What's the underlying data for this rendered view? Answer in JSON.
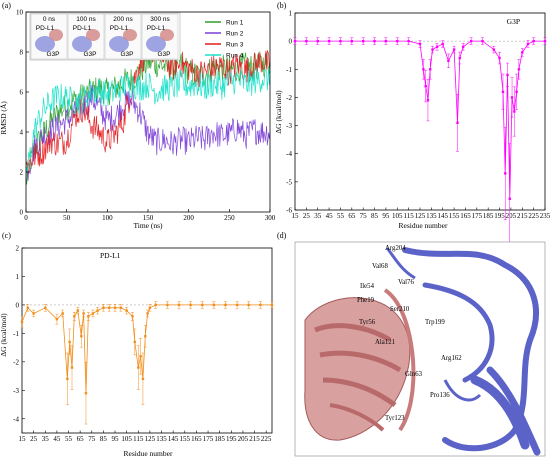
{
  "chart_data": [
    {
      "panel_label": "(a)",
      "type": "line",
      "xlabel": "Time (ns)",
      "ylabel": "RMSD (Å)",
      "xlim": [
        0,
        300
      ],
      "ylim": [
        0,
        10
      ],
      "xticks": [
        "0",
        "50",
        "100",
        "150",
        "200",
        "250",
        "300"
      ],
      "yticks": [
        "0",
        "2",
        "4",
        "6",
        "8",
        "10"
      ],
      "legend_position": "top-right",
      "inset": {
        "times": [
          "0 ns",
          "100 ns",
          "200 ns",
          "300 ns"
        ],
        "protein_labels": [
          "PD-L1",
          "G3P"
        ]
      },
      "series": [
        {
          "name": "Run 1",
          "color": "#2ca02c",
          "x": [
            0,
            10,
            20,
            30,
            40,
            50,
            60,
            70,
            80,
            90,
            100,
            110,
            120,
            130,
            140,
            150,
            160,
            170,
            180,
            190,
            200,
            210,
            220,
            230,
            240,
            250,
            260,
            270,
            280,
            290,
            300
          ],
          "values": [
            1.5,
            3.2,
            3.8,
            4.5,
            5.0,
            5.3,
            5.6,
            5.8,
            6.0,
            6.2,
            6.0,
            6.2,
            6.5,
            6.6,
            7.0,
            7.5,
            7.4,
            7.3,
            7.2,
            7.4,
            7.0,
            6.8,
            6.9,
            7.2,
            7.2,
            7.1,
            7.2,
            7.3,
            7.2,
            7.4,
            7.5
          ]
        },
        {
          "name": "Run 2",
          "color": "#7b3fd6",
          "x": [
            0,
            10,
            20,
            30,
            40,
            50,
            60,
            70,
            80,
            90,
            100,
            110,
            120,
            130,
            140,
            150,
            160,
            170,
            180,
            190,
            200,
            210,
            220,
            230,
            240,
            250,
            260,
            270,
            280,
            290,
            300
          ],
          "values": [
            1.8,
            3.2,
            3.8,
            4.0,
            4.3,
            4.6,
            4.9,
            5.2,
            5.8,
            5.2,
            4.6,
            4.8,
            5.4,
            5.6,
            5.0,
            3.9,
            3.5,
            3.6,
            3.4,
            3.6,
            3.5,
            3.7,
            3.6,
            4.0,
            3.8,
            3.9,
            4.2,
            3.8,
            4.1,
            4.0,
            4.0
          ]
        },
        {
          "name": "Run 3",
          "color": "#e31a1c",
          "x": [
            0,
            10,
            20,
            30,
            40,
            50,
            60,
            70,
            80,
            90,
            100,
            110,
            120,
            130,
            140,
            150,
            160,
            170,
            180,
            190,
            200,
            210,
            220,
            230,
            240,
            250,
            260,
            270,
            280,
            290,
            300
          ],
          "values": [
            2.2,
            2.8,
            3.0,
            3.6,
            3.4,
            3.6,
            4.8,
            5.2,
            4.4,
            4.0,
            3.5,
            3.9,
            4.6,
            6.2,
            7.5,
            8.0,
            8.2,
            7.6,
            7.2,
            7.4,
            7.2,
            6.9,
            7.0,
            7.2,
            7.3,
            7.0,
            7.4,
            7.1,
            7.3,
            7.6,
            7.3
          ]
        },
        {
          "name": "Run 4",
          "color": "#17e0c8",
          "x": [
            0,
            10,
            20,
            30,
            40,
            50,
            60,
            70,
            80,
            90,
            100,
            110,
            120,
            130,
            140,
            150,
            160,
            170,
            180,
            190,
            200,
            210,
            220,
            230,
            240,
            250,
            260,
            270,
            280,
            290,
            300
          ],
          "values": [
            1.7,
            4.0,
            5.0,
            5.5,
            5.8,
            5.7,
            5.5,
            5.6,
            6.0,
            6.1,
            5.9,
            6.0,
            6.3,
            6.4,
            6.2,
            6.4,
            6.0,
            6.2,
            6.2,
            6.4,
            6.3,
            6.4,
            6.2,
            6.4,
            6.3,
            6.5,
            6.6,
            6.4,
            6.5,
            6.7,
            6.6
          ]
        }
      ]
    },
    {
      "panel_label": "(b)",
      "type": "line",
      "series_label": "G3P",
      "color": "#ff00ff",
      "xlabel": "Residue number",
      "ylabel": "ΔG (kcal/mol)",
      "xlim": [
        15,
        235
      ],
      "ylim": [
        -6,
        1
      ],
      "xticks": [
        "15",
        "25",
        "35",
        "45",
        "55",
        "65",
        "75",
        "85",
        "95",
        "105",
        "115",
        "125",
        "135",
        "145",
        "155",
        "165",
        "175",
        "185",
        "195",
        "205",
        "215",
        "225",
        "235"
      ],
      "yticks": [
        "1",
        "0",
        "-1",
        "-2",
        "-3",
        "-4",
        "-5",
        "-6"
      ],
      "x": [
        15,
        25,
        35,
        45,
        55,
        65,
        75,
        85,
        95,
        105,
        115,
        125,
        128,
        130,
        132,
        134,
        136,
        140,
        145,
        150,
        155,
        158,
        160,
        163,
        170,
        180,
        190,
        195,
        198,
        200,
        202,
        204,
        206,
        208,
        210,
        212,
        215,
        220,
        225,
        235
      ],
      "values": [
        0.0,
        0.0,
        0.0,
        0.0,
        0.0,
        0.0,
        0.0,
        0.0,
        0.0,
        0.0,
        0.0,
        -0.1,
        -1.0,
        -1.6,
        -2.1,
        -1.0,
        -0.3,
        -0.2,
        -0.1,
        -0.7,
        -0.3,
        -2.9,
        -0.6,
        -0.2,
        0.0,
        0.0,
        -0.3,
        -0.6,
        -1.8,
        -4.7,
        -1.2,
        -5.6,
        -2.0,
        -2.5,
        -1.8,
        -1.0,
        -0.4,
        -0.1,
        0.0,
        0.0
      ]
    },
    {
      "panel_label": "(c)",
      "type": "line",
      "series_label": "PD-L1",
      "color": "#f28e1c",
      "xlabel": "Residue number",
      "ylabel": "ΔG (kcal/mol)",
      "xlim": [
        15,
        230
      ],
      "ylim": [
        -4.5,
        2
      ],
      "xticks": [
        "15",
        "25",
        "35",
        "45",
        "55",
        "65",
        "75",
        "85",
        "95",
        "105",
        "115",
        "125",
        "135",
        "145",
        "155",
        "165",
        "175",
        "185",
        "195",
        "205",
        "215",
        "225"
      ],
      "yticks": [
        "2",
        "1",
        "0",
        "-1",
        "-2",
        "-3",
        "-4"
      ],
      "x": [
        15,
        20,
        25,
        35,
        45,
        50,
        54,
        56,
        58,
        60,
        63,
        66,
        68,
        70,
        72,
        76,
        80,
        85,
        90,
        95,
        100,
        105,
        110,
        112,
        115,
        117,
        119,
        121,
        123,
        125,
        130,
        140,
        150,
        160,
        170,
        180,
        190,
        200,
        210,
        220,
        230
      ],
      "values": [
        -0.6,
        -0.1,
        -0.3,
        -0.1,
        -0.5,
        -0.3,
        -2.6,
        -1.3,
        -2.2,
        -0.4,
        -0.2,
        -1.1,
        -0.3,
        -3.1,
        -0.4,
        -0.3,
        -0.2,
        -0.1,
        -0.1,
        -0.1,
        -0.1,
        -0.2,
        -0.4,
        -1.3,
        -2.2,
        -1.8,
        -2.6,
        -1.1,
        -0.3,
        -0.1,
        0.0,
        0.0,
        0.0,
        0.0,
        0.0,
        0.0,
        0.0,
        0.0,
        0.0,
        0.0,
        0.0
      ]
    }
  ],
  "panel_d": {
    "panel_label": "(d)",
    "residues": [
      "Arg204",
      "Val68",
      "Val76",
      "Ile54",
      "Phe19",
      "Ser210",
      "Trp199",
      "Tyr56",
      "Ala121",
      "Arg162",
      "Gln63",
      "Pro136",
      "Tyr123"
    ]
  },
  "colors": {
    "pdl1_ribbon": "#c97b7b",
    "g3p_ribbon": "#5b63c9",
    "background": "#ffffff"
  }
}
